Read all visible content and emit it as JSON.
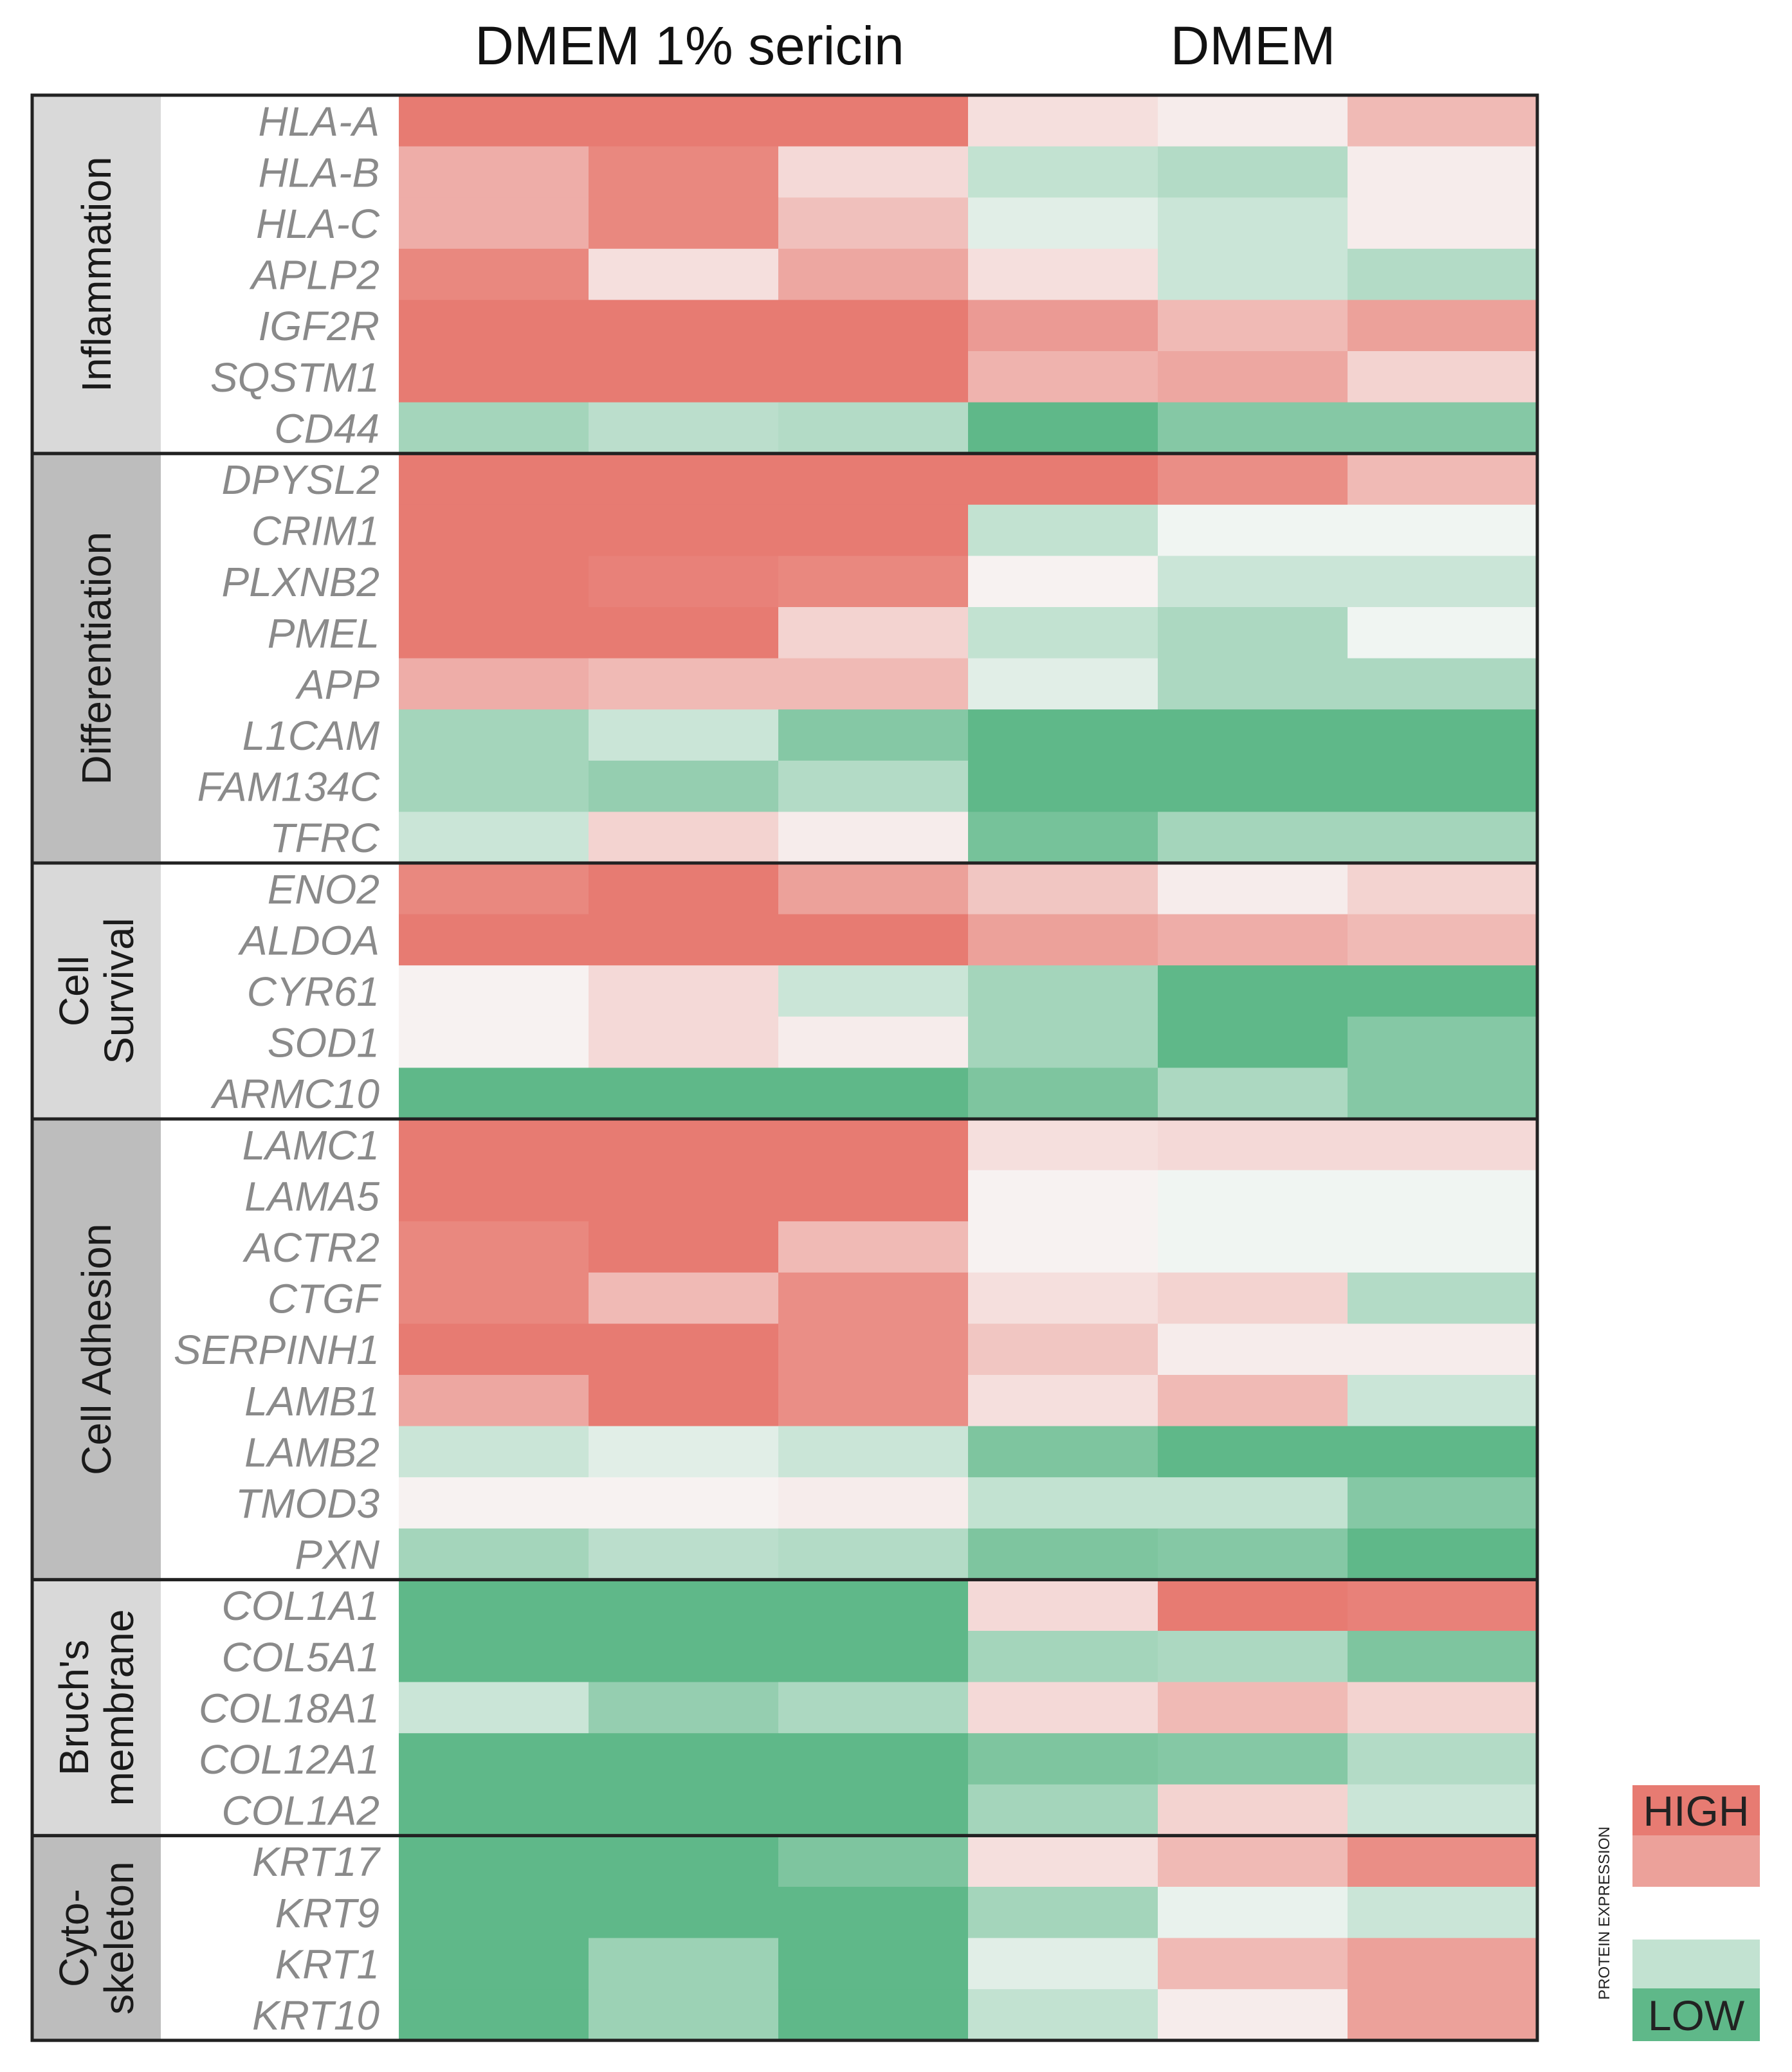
{
  "chart_data": {
    "type": "heatmap",
    "column_groups": [
      "DMEM 1% sericin",
      "DMEM"
    ],
    "columns_per_group": 3,
    "value_scale": "protein expression, -1 (low) to +1 (high)",
    "colors": {
      "high": "#e77b72",
      "mid": "#f8f8f8",
      "low": "#5fb889",
      "border": "#222222",
      "group_band_a": "#d9d9d9",
      "group_band_b": "#bdbdbd"
    },
    "groups": [
      {
        "name": "Inflammation",
        "band": "a",
        "rows": [
          {
            "gene": "HLA-A",
            "values": [
              1.0,
              1.0,
              1.0,
              0.2,
              0.1,
              0.5
            ]
          },
          {
            "gene": "HLA-B",
            "values": [
              0.6,
              0.9,
              0.25,
              -0.35,
              -0.45,
              0.1
            ]
          },
          {
            "gene": "HLA-C",
            "values": [
              0.6,
              0.9,
              0.45,
              -0.15,
              -0.3,
              0.1
            ]
          },
          {
            "gene": "APLP2",
            "values": [
              0.9,
              0.2,
              0.65,
              0.2,
              -0.3,
              -0.45
            ]
          },
          {
            "gene": "IGF2R",
            "values": [
              1.0,
              1.0,
              1.0,
              0.75,
              0.5,
              0.7
            ]
          },
          {
            "gene": "SQSTM1",
            "values": [
              1.0,
              1.0,
              1.0,
              0.55,
              0.65,
              0.3
            ]
          },
          {
            "gene": "CD44",
            "values": [
              -0.55,
              -0.4,
              -0.45,
              -1.0,
              -0.75,
              -0.75
            ]
          }
        ]
      },
      {
        "name": "Differentiation",
        "band": "b",
        "rows": [
          {
            "gene": "DPYSL2",
            "values": [
              1.0,
              1.0,
              1.0,
              1.0,
              0.85,
              0.5
            ]
          },
          {
            "gene": "CRIM1",
            "values": [
              1.0,
              1.0,
              1.0,
              -0.35,
              -0.05,
              -0.05
            ]
          },
          {
            "gene": "PLXNB2",
            "values": [
              1.0,
              0.95,
              0.9,
              0.05,
              -0.3,
              -0.3
            ]
          },
          {
            "gene": "PMEL",
            "values": [
              1.0,
              1.0,
              0.3,
              -0.35,
              -0.5,
              -0.05
            ]
          },
          {
            "gene": "APP",
            "values": [
              0.6,
              0.5,
              0.5,
              -0.15,
              -0.5,
              -0.5
            ]
          },
          {
            "gene": "L1CAM",
            "values": [
              -0.55,
              -0.3,
              -0.75,
              -1.0,
              -1.0,
              -1.0
            ]
          },
          {
            "gene": "FAM134C",
            "values": [
              -0.55,
              -0.65,
              -0.45,
              -1.0,
              -1.0,
              -1.0
            ]
          },
          {
            "gene": "TFRC",
            "values": [
              -0.3,
              0.3,
              0.1,
              -0.85,
              -0.55,
              -0.55
            ]
          }
        ]
      },
      {
        "name": "Cell\nSurvival",
        "band": "a",
        "rows": [
          {
            "gene": "ENO2",
            "values": [
              0.9,
              1.0,
              0.7,
              0.4,
              0.1,
              0.3
            ]
          },
          {
            "gene": "ALDOA",
            "values": [
              1.0,
              1.0,
              1.0,
              0.7,
              0.6,
              0.5
            ]
          },
          {
            "gene": "CYR61",
            "values": [
              0.05,
              0.25,
              -0.3,
              -0.55,
              -1.0,
              -1.0
            ]
          },
          {
            "gene": "SOD1",
            "values": [
              0.05,
              0.25,
              0.1,
              -0.55,
              -1.0,
              -0.75
            ]
          },
          {
            "gene": "ARMC10",
            "values": [
              -1.0,
              -1.0,
              -1.0,
              -0.8,
              -0.5,
              -0.75
            ]
          }
        ]
      },
      {
        "name": "Cell Adhesion",
        "band": "b",
        "rows": [
          {
            "gene": "LAMC1",
            "values": [
              1.0,
              1.0,
              1.0,
              0.2,
              0.25,
              0.25
            ]
          },
          {
            "gene": "LAMA5",
            "values": [
              1.0,
              1.0,
              1.0,
              0.05,
              -0.05,
              -0.05
            ]
          },
          {
            "gene": "ACTR2",
            "values": [
              0.9,
              1.0,
              0.5,
              0.05,
              -0.05,
              -0.05
            ]
          },
          {
            "gene": "CTGF",
            "values": [
              0.9,
              0.5,
              0.85,
              0.2,
              0.3,
              -0.45
            ]
          },
          {
            "gene": "SERPINH1",
            "values": [
              1.0,
              1.0,
              0.85,
              0.4,
              0.1,
              0.1
            ]
          },
          {
            "gene": "LAMB1",
            "values": [
              0.65,
              1.0,
              0.85,
              0.2,
              0.5,
              -0.3
            ]
          },
          {
            "gene": "LAMB2",
            "values": [
              -0.3,
              -0.15,
              -0.3,
              -0.8,
              -1.0,
              -1.0
            ]
          },
          {
            "gene": "TMOD3",
            "values": [
              0.05,
              0.05,
              0.1,
              -0.35,
              -0.35,
              -0.75
            ]
          },
          {
            "gene": "PXN",
            "values": [
              -0.55,
              -0.4,
              -0.45,
              -0.8,
              -0.75,
              -1.0
            ]
          }
        ]
      },
      {
        "name": "Bruch's\nmembrane",
        "band": "a",
        "rows": [
          {
            "gene": "COL1A1",
            "values": [
              -1.0,
              -1.0,
              -1.0,
              0.25,
              1.0,
              0.95
            ]
          },
          {
            "gene": "COL5A1",
            "values": [
              -1.0,
              -1.0,
              -1.0,
              -0.55,
              -0.5,
              -0.8
            ]
          },
          {
            "gene": "COL18A1",
            "values": [
              -0.3,
              -0.65,
              -0.5,
              0.25,
              0.5,
              0.3
            ]
          },
          {
            "gene": "COL12A1",
            "values": [
              -1.0,
              -1.0,
              -1.0,
              -0.8,
              -0.75,
              -0.45
            ]
          },
          {
            "gene": "COL1A2",
            "values": [
              -1.0,
              -1.0,
              -1.0,
              -0.55,
              0.3,
              -0.3
            ]
          }
        ]
      },
      {
        "name": "Cyto-\nskeleton",
        "band": "b",
        "rows": [
          {
            "gene": "KRT17",
            "values": [
              -1.0,
              -1.0,
              -0.8,
              0.2,
              0.5,
              0.85
            ]
          },
          {
            "gene": "KRT9",
            "values": [
              -1.0,
              -1.0,
              -1.0,
              -0.55,
              -0.1,
              -0.3
            ]
          },
          {
            "gene": "KRT1",
            "values": [
              -1.0,
              -0.6,
              -1.0,
              -0.15,
              0.5,
              0.7
            ]
          },
          {
            "gene": "KRT10",
            "values": [
              -1.0,
              -0.6,
              -1.0,
              -0.35,
              0.1,
              0.7
            ]
          }
        ]
      }
    ],
    "legend": {
      "title": "PROTEIN EXPRESSION",
      "high_label": "HIGH",
      "low_label": "LOW"
    }
  }
}
